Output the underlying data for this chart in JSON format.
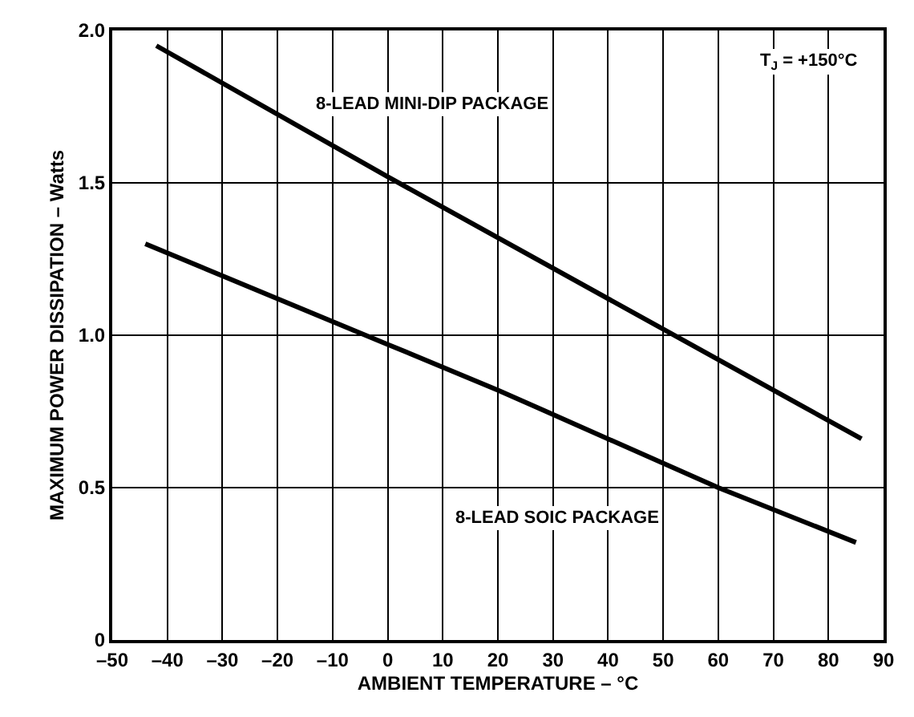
{
  "chart_data": {
    "type": "line",
    "xlabel": "AMBIENT TEMPERATURE – °C",
    "ylabel": "MAXIMUM POWER DISSIPATION – Watts",
    "annotations": [
      "T$_{J}$ = +150°C"
    ],
    "series": [
      {
        "name": "8-LEAD MINI-DIP PACKAGE",
        "color": "#000000",
        "x": [
          -42,
          0,
          50,
          86
        ],
        "values": [
          1.95,
          1.52,
          1.02,
          0.66
        ]
      },
      {
        "name": "8-LEAD SOIC PACKAGE",
        "color": "#000000",
        "x": [
          -44,
          0,
          20,
          60,
          85
        ],
        "values": [
          1.3,
          0.97,
          0.82,
          0.5,
          0.32
        ]
      }
    ],
    "xlim": [
      -50,
      90
    ],
    "xticks": [
      {
        "value": -50,
        "label": "–50"
      },
      {
        "value": -40,
        "label": "–40"
      },
      {
        "value": -30,
        "label": "–30"
      },
      {
        "value": -20,
        "label": "–20"
      },
      {
        "value": -10,
        "label": "–10"
      },
      0,
      10,
      20,
      30,
      40,
      50,
      60,
      70,
      80,
      90
    ],
    "ylim": [
      0,
      2.0
    ],
    "yticks": [
      {
        "value": 0,
        "label": "0"
      },
      {
        "value": 0.5,
        "label": "0.5"
      },
      {
        "value": 1.0,
        "label": "1.0"
      },
      {
        "value": 1.5,
        "label": "1.5"
      },
      {
        "value": 2.0,
        "label": "2.0"
      }
    ],
    "grid": true,
    "legend": false,
    "marker": "none",
    "line_style": "solid"
  }
}
